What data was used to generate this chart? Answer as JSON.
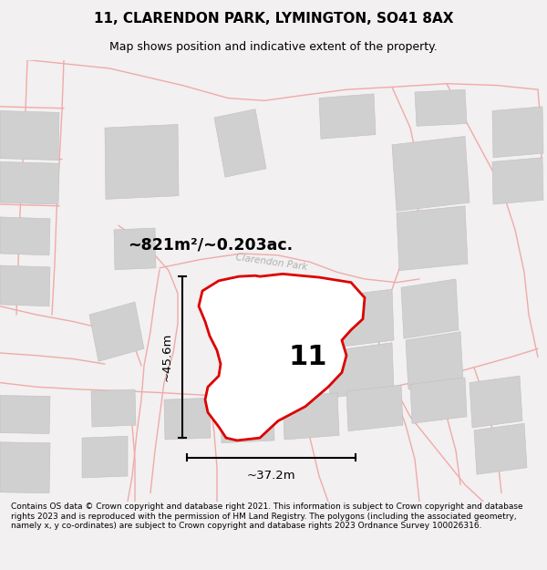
{
  "title": "11, CLARENDON PARK, LYMINGTON, SO41 8AX",
  "subtitle": "Map shows position and indicative extent of the property.",
  "footer": "Contains OS data © Crown copyright and database right 2021. This information is subject to Crown copyright and database rights 2023 and is reproduced with the permission of HM Land Registry. The polygons (including the associated geometry, namely x, y co-ordinates) are subject to Crown copyright and database rights 2023 Ordnance Survey 100026316.",
  "area_label": "~821m²/~0.203ac.",
  "width_label": "~37.2m",
  "height_label": "~45.6m",
  "number_label": "11",
  "bg_color": "#f2f0f0",
  "map_bg": "#ffffff",
  "plot_color": "#dd0000",
  "road_color": "#f0aaaa",
  "building_color": "#d0d0d0",
  "building_edge": "#c0c0c0",
  "street_color": "#b0b0b0",
  "title_fontsize": 11,
  "subtitle_fontsize": 9,
  "footer_fontsize": 6.5
}
